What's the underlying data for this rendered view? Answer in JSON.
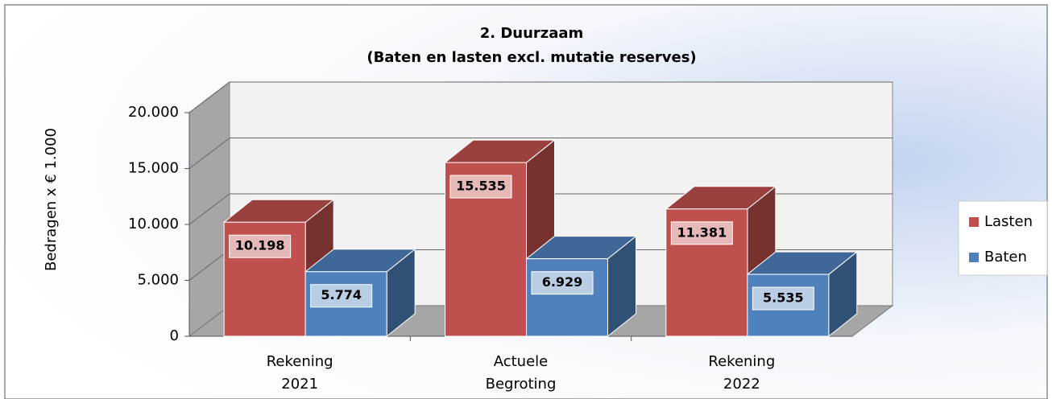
{
  "chart_data": {
    "type": "bar3d",
    "title": [
      "2. Duurzaam",
      "(Baten en lasten excl. mutatie reserves)"
    ],
    "y_label": "Bedragen x € 1.000",
    "categories": [
      [
        "Rekening",
        "2021"
      ],
      [
        "Actuele",
        "Begroting"
      ],
      [
        "Rekening",
        "2022"
      ]
    ],
    "series": [
      {
        "name": "Lasten",
        "color": "#c0504d",
        "values": [
          10198,
          15535,
          11381
        ],
        "value_labels": [
          "10.198",
          "15.535",
          "11.381"
        ]
      },
      {
        "name": "Baten",
        "color": "#4f81bd",
        "values": [
          5774,
          6929,
          5535
        ],
        "value_labels": [
          "5.774",
          "6.929",
          "5.535"
        ]
      }
    ],
    "ylim": [
      0,
      20000
    ],
    "yticks": [
      0,
      {
        "value": 5000,
        "label": "5.000"
      },
      {
        "value": 10000,
        "label": "10.000"
      },
      {
        "value": 15000,
        "label": "15.000"
      },
      {
        "value": 20000,
        "label": "20.000"
      }
    ],
    "grid": true,
    "legend": "right"
  }
}
